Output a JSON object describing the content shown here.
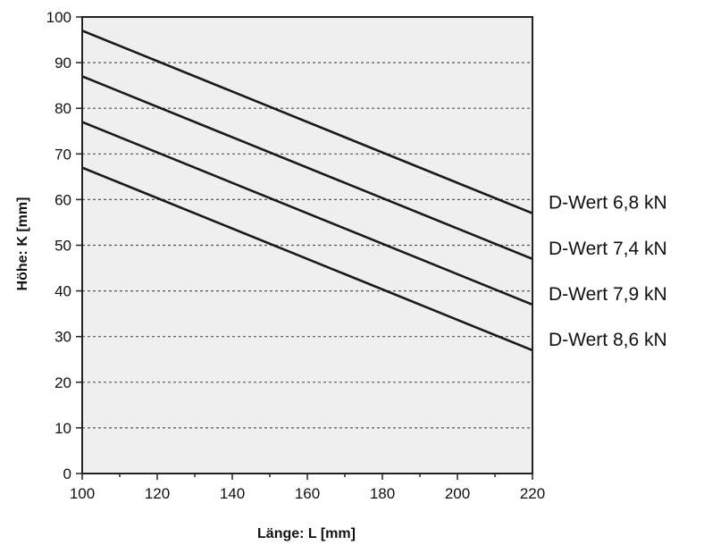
{
  "chart_data": {
    "type": "line",
    "title": "",
    "xlabel": "Länge: L [mm]",
    "ylabel": "Höhe: K [mm]",
    "xlim": [
      100,
      220
    ],
    "ylim": [
      0,
      100
    ],
    "xticks": [
      100,
      120,
      140,
      160,
      180,
      200,
      220
    ],
    "yticks": [
      0,
      10,
      20,
      30,
      40,
      50,
      60,
      70,
      80,
      90,
      100
    ],
    "grid": "horizontal dashed",
    "legend": "right, labels at line ends",
    "series": [
      {
        "name": "D-Wert 6,8 kN",
        "x": [
          100,
          220
        ],
        "y": [
          97,
          57
        ]
      },
      {
        "name": "D-Wert 7,4 kN",
        "x": [
          100,
          220
        ],
        "y": [
          87,
          47
        ]
      },
      {
        "name": "D-Wert 7,9 kN",
        "x": [
          100,
          220
        ],
        "y": [
          77,
          37
        ]
      },
      {
        "name": "D-Wert 8,6 kN",
        "x": [
          100,
          220
        ],
        "y": [
          67,
          27
        ]
      }
    ]
  },
  "colors": {
    "plot_background": "#efefef",
    "line": "#1a1a1a",
    "grid": "#555555"
  }
}
